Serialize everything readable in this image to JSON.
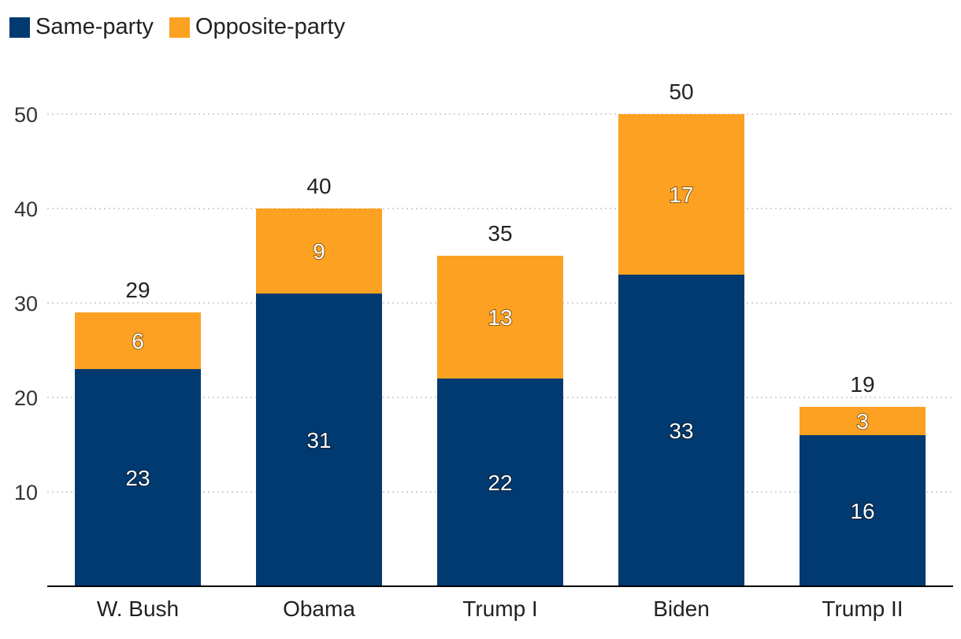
{
  "colors": {
    "same_party": "#003a70",
    "opposite_party": "#fca121",
    "grid": "#bbbbbb",
    "axis": "#000000"
  },
  "legend": {
    "same_party_label": "Same-party",
    "opposite_party_label": "Opposite-party"
  },
  "chart_data": {
    "type": "bar",
    "stacked": true,
    "title": "",
    "xlabel": "",
    "ylabel": "",
    "categories": [
      "W. Bush",
      "Obama",
      "Trump I",
      "Biden",
      "Trump II"
    ],
    "series": [
      {
        "name": "Same-party",
        "values": [
          23,
          31,
          22,
          33,
          16
        ]
      },
      {
        "name": "Opposite-party",
        "values": [
          6,
          9,
          13,
          17,
          3
        ]
      }
    ],
    "totals": [
      29,
      40,
      35,
      50,
      19
    ],
    "yticks": [
      10,
      20,
      30,
      40,
      50
    ],
    "ylim": [
      0,
      50
    ],
    "grid": true,
    "legend_position": "top-left"
  }
}
